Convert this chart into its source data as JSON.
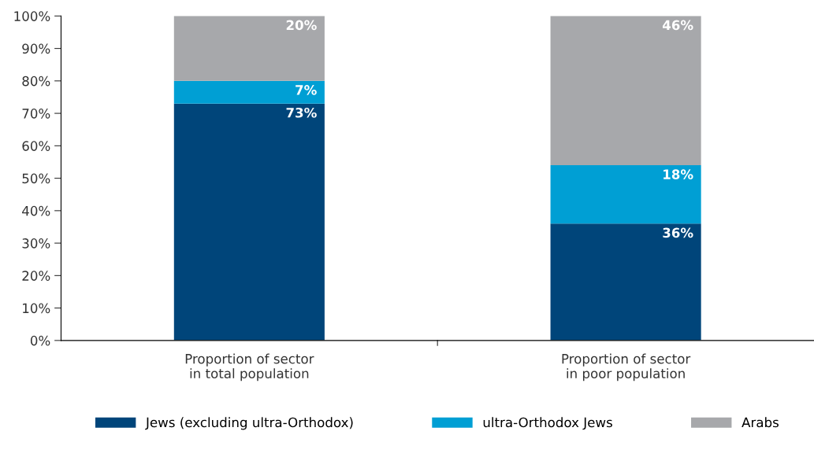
{
  "chart_data": {
    "type": "bar",
    "stacked": true,
    "categories": [
      "Proportion of sector\nin total population",
      "Proportion of sector\nin poor population"
    ],
    "series": [
      {
        "name": "Jews (excluding ultra-Orthodox)",
        "color": "#00457a",
        "values": [
          73,
          36
        ],
        "value_labels": [
          "73%",
          "36%"
        ]
      },
      {
        "name": "ultra-Orthodox Jews",
        "color": "#009fd4",
        "values": [
          7,
          18
        ],
        "value_labels": [
          "7%",
          "18%"
        ]
      },
      {
        "name": "Arabs",
        "color": "#a7a8ab",
        "values": [
          20,
          46
        ],
        "value_labels": [
          "20%",
          "46%"
        ]
      }
    ],
    "ylim": [
      0,
      100
    ],
    "yticks": [
      {
        "value": 0,
        "label": "0%"
      },
      {
        "value": 10,
        "label": "10%"
      },
      {
        "value": 20,
        "label": "20%"
      },
      {
        "value": 30,
        "label": "30%"
      },
      {
        "value": 40,
        "label": "40%"
      },
      {
        "value": 50,
        "label": "50%"
      },
      {
        "value": 60,
        "label": "60%"
      },
      {
        "value": 70,
        "label": "70%"
      },
      {
        "value": 80,
        "label": "80%"
      },
      {
        "value": 90,
        "label": "90%"
      },
      {
        "value": 100,
        "label": "100%"
      }
    ],
    "grid": false,
    "legend": "bottom"
  }
}
